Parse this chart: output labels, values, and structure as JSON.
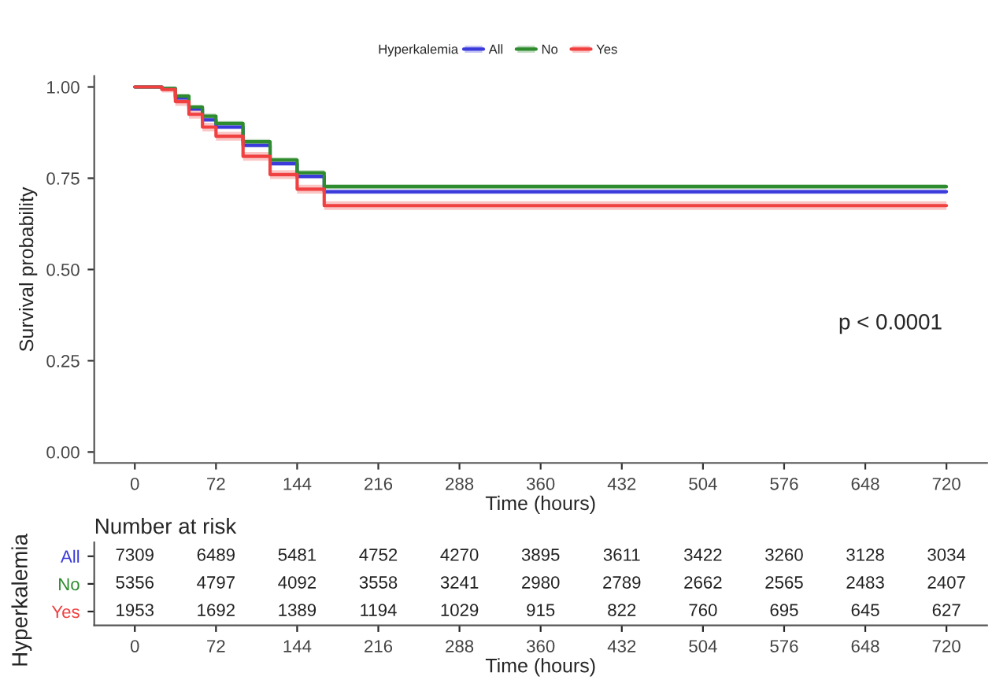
{
  "chart_data": [
    {
      "type": "step",
      "xlabel": "Time (hours)",
      "ylabel": "Survival probability",
      "legend_title": "Hyperkalemia",
      "legend": "top",
      "grid": false,
      "xlim": [
        -36,
        756
      ],
      "xticks": [
        0,
        72,
        144,
        216,
        288,
        360,
        432,
        504,
        576,
        648,
        720
      ],
      "ylim": [
        -0.03,
        1.03
      ],
      "yticks": [
        {
          "value": 0,
          "label": "0.00"
        },
        {
          "value": 0.25,
          "label": "0.25"
        },
        {
          "value": 0.5,
          "label": "0.50"
        },
        {
          "value": 0.75,
          "label": "0.75"
        },
        {
          "value": 1,
          "label": "1.00"
        }
      ],
      "x": [
        0,
        24,
        36,
        48,
        60,
        72,
        96,
        120,
        144,
        168,
        720
      ],
      "series": [
        {
          "name": "All",
          "color": "#3b3bdb",
          "values": [
            1.0,
            0.995,
            0.97,
            0.94,
            0.91,
            0.89,
            0.84,
            0.79,
            0.755,
            0.713,
            0.713
          ],
          "lower": [
            1.0,
            0.99,
            0.964,
            0.934,
            0.904,
            0.884,
            0.834,
            0.784,
            0.749,
            0.707,
            0.707
          ],
          "upper": [
            1.0,
            1.0,
            0.976,
            0.946,
            0.916,
            0.896,
            0.846,
            0.796,
            0.761,
            0.719,
            0.719
          ]
        },
        {
          "name": "No",
          "color": "#2e8b2e",
          "values": [
            1.0,
            0.996,
            0.975,
            0.945,
            0.92,
            0.9,
            0.85,
            0.8,
            0.765,
            0.727,
            0.727
          ],
          "lower": [
            1.0,
            0.991,
            0.969,
            0.939,
            0.913,
            0.893,
            0.843,
            0.793,
            0.758,
            0.72,
            0.72
          ],
          "upper": [
            1.0,
            1.0,
            0.981,
            0.951,
            0.927,
            0.907,
            0.857,
            0.807,
            0.772,
            0.734,
            0.734
          ]
        },
        {
          "name": "Yes",
          "color": "#f04040",
          "values": [
            1.0,
            0.993,
            0.96,
            0.925,
            0.89,
            0.865,
            0.81,
            0.76,
            0.72,
            0.675,
            0.675
          ],
          "lower": [
            1.0,
            0.985,
            0.948,
            0.913,
            0.878,
            0.853,
            0.798,
            0.748,
            0.708,
            0.663,
            0.663
          ],
          "upper": [
            1.0,
            1.0,
            0.972,
            0.937,
            0.902,
            0.877,
            0.822,
            0.772,
            0.732,
            0.687,
            0.687
          ]
        }
      ],
      "annotations": [
        "p < 0.0001"
      ]
    },
    {
      "type": "heatmap",
      "title": "Number at risk",
      "xlabel": "Time (hours)",
      "ylabel": "Hyperkalemia",
      "categories": [
        "0",
        "72",
        "144",
        "216",
        "288",
        "360",
        "432",
        "504",
        "576",
        "648",
        "720"
      ],
      "y_categories": [
        "All",
        "No",
        "Yes"
      ],
      "cells": [
        [
          7309,
          6489,
          5481,
          4752,
          4270,
          3895,
          3611,
          3422,
          3260,
          3128,
          3034
        ],
        [
          5356,
          4797,
          4092,
          3558,
          3241,
          2980,
          2789,
          2662,
          2565,
          2483,
          2407
        ],
        [
          1953,
          1692,
          1389,
          1194,
          1029,
          915,
          822,
          760,
          695,
          645,
          627
        ]
      ],
      "data_labels": true
    }
  ]
}
